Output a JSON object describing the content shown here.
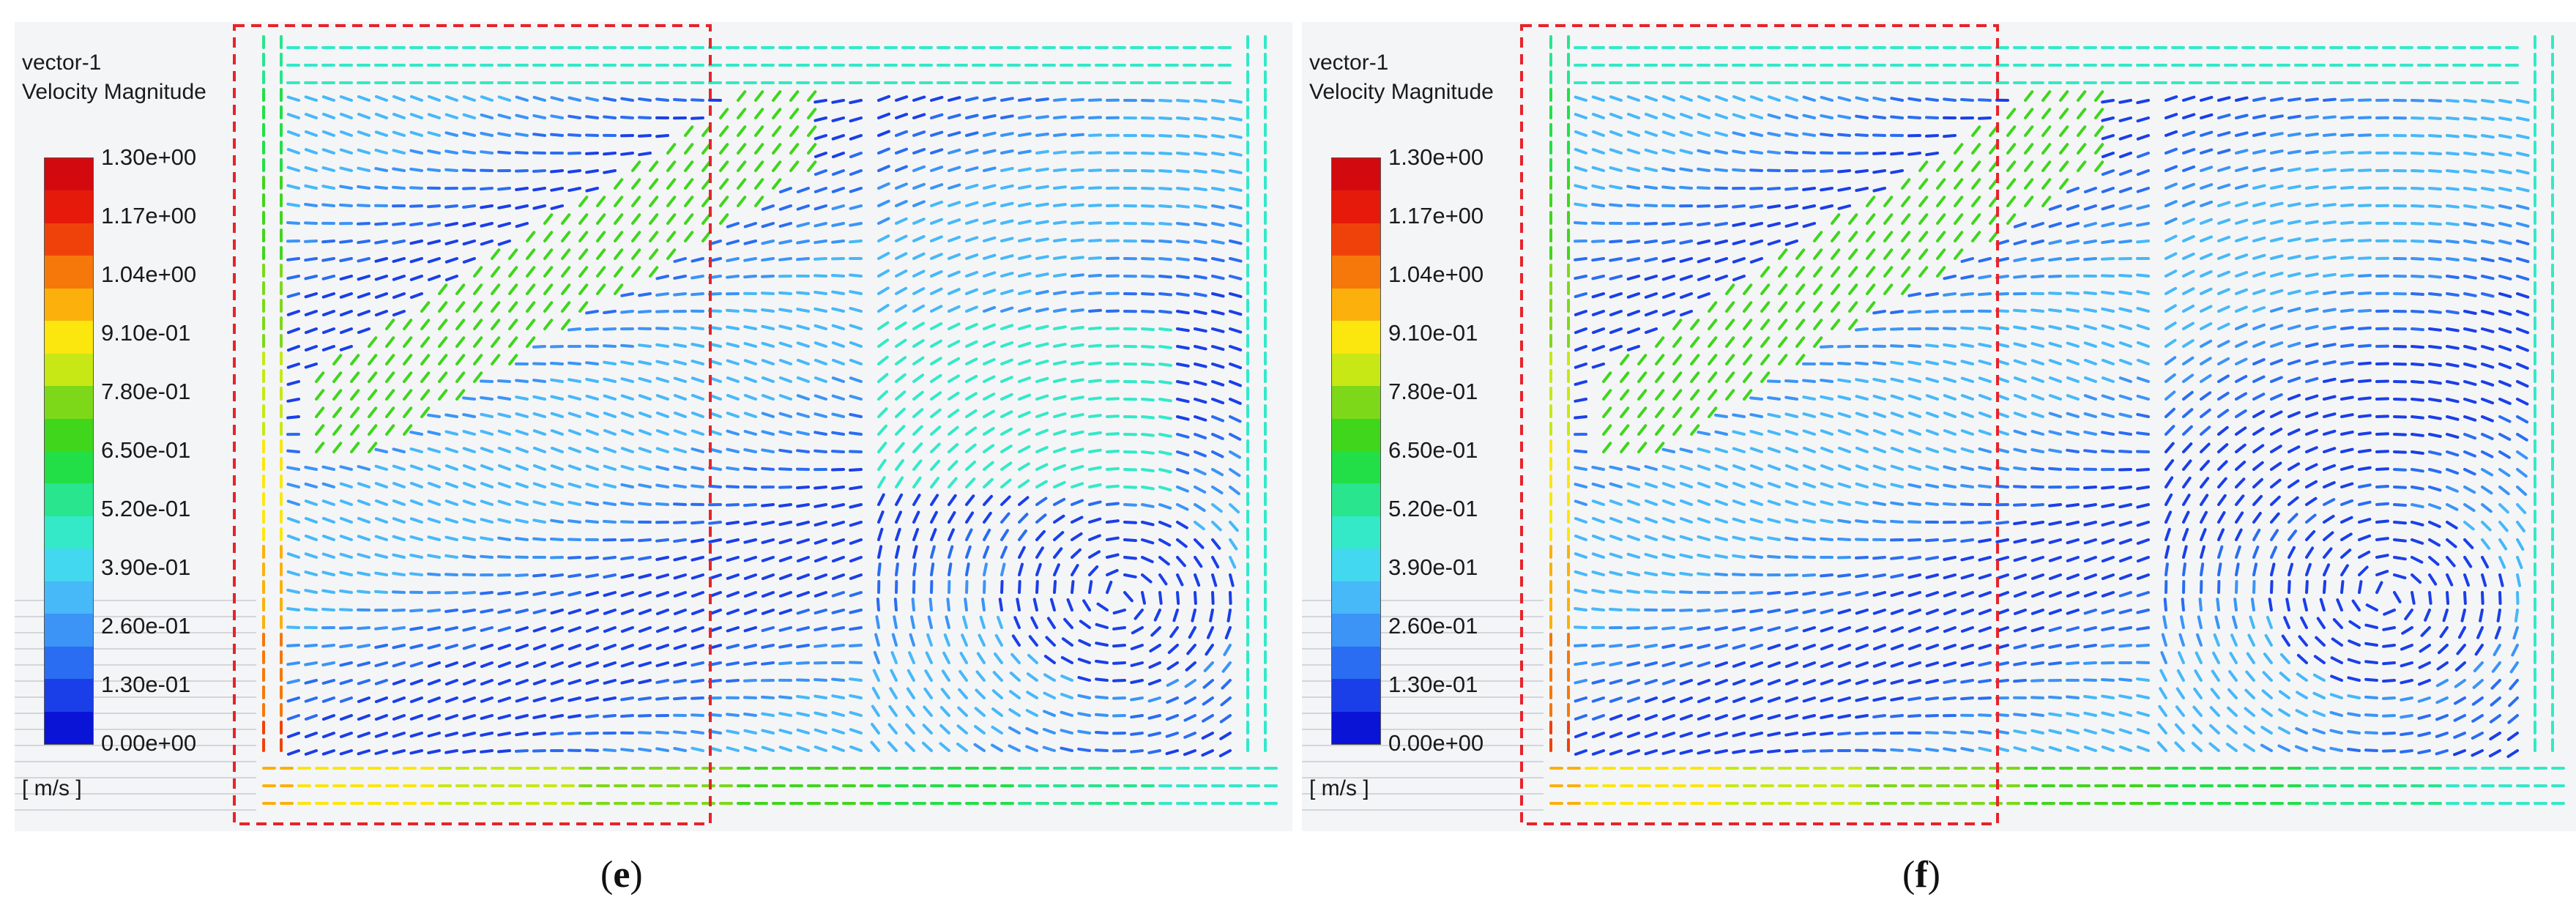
{
  "colors": {
    "scale": [
      "#0a14d6",
      "#1a3fe8",
      "#2a6df2",
      "#3b94f6",
      "#47b8f8",
      "#41d8f0",
      "#33e9c8",
      "#28e58e",
      "#22df48",
      "#3fd61c",
      "#7ed81a",
      "#c7e814",
      "#fbe60e",
      "#fbb00c",
      "#f6780a",
      "#ef420a",
      "#e61a0a",
      "#d20a10"
    ],
    "box": "#e8232a",
    "panel_bg": "#f4f5f7"
  },
  "panels": [
    {
      "id": "e",
      "title": "vector-1",
      "subtitle": "Velocity Magnitude",
      "ticks": [
        "1.30e+00",
        "1.17e+00",
        "1.04e+00",
        "9.10e-01",
        "7.80e-01",
        "6.50e-01",
        "5.20e-01",
        "3.90e-01",
        "2.60e-01",
        "1.30e-01",
        "0.00e+00"
      ],
      "unit": "[ m/s ]",
      "caption": "e"
    },
    {
      "id": "f",
      "title": "vector-1",
      "subtitle": "Velocity Magnitude",
      "ticks": [
        "1.30e+00",
        "1.17e+00",
        "1.04e+00",
        "9.10e-01",
        "7.80e-01",
        "6.50e-01",
        "5.20e-01",
        "3.90e-01",
        "2.60e-01",
        "1.30e-01",
        "0.00e+00"
      ],
      "unit": "[ m/s ]",
      "caption": "f"
    }
  ]
}
